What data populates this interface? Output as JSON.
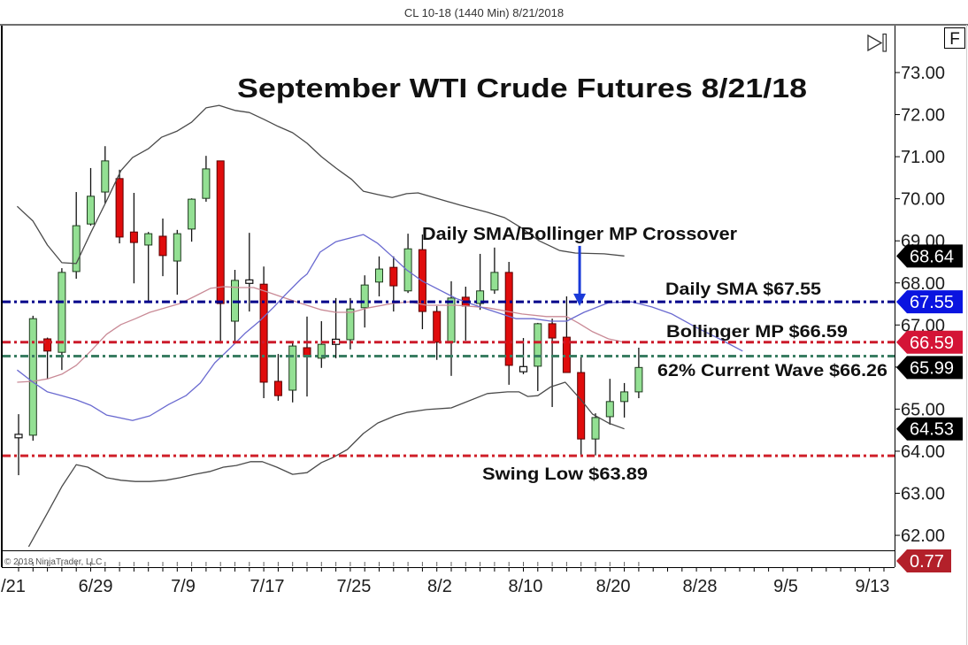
{
  "header": {
    "title": "CL 10-18 (1440 Min)  8/21/2018"
  },
  "toolbar": {
    "scroll_to_end_icon": "scroll-to-end-icon",
    "f_button_label": "F"
  },
  "copyright": "© 2018 NinjaTrader, LLC",
  "annotations": {
    "main_title": "September WTI Crude Futures 8/21/18",
    "crossover": "Daily SMA/Bollinger MP Crossover",
    "daily_sma": "Daily SMA $67.55",
    "bollinger_mp": "Bollinger MP $66.59",
    "fib_62": "62% Current Wave $66.26",
    "swing_low": "Swing Low $63.89"
  },
  "colors": {
    "up_candle": "#93e093",
    "up_outline": "#1e3a1e",
    "down_candle": "#e00c0c",
    "down_outline": "#5a0000",
    "wick": "#111111",
    "arrow": "#1a3ad8",
    "axis": "#000000"
  },
  "chart_data": {
    "type": "candlestick",
    "title": "September WTI Crude Futures 8/21/18",
    "instrument": "CL 10-18",
    "interval": "1440 Min",
    "date": "8/21/2018",
    "xlabel": "",
    "ylabel": "",
    "ylim": [
      61.5,
      74.0
    ],
    "grid": false,
    "y_ticks": [
      73,
      72,
      71,
      70,
      69,
      68,
      67,
      66,
      65,
      64,
      63,
      62
    ],
    "x_ticks": [
      {
        "label": "/21",
        "pos": -0.37
      },
      {
        "label": "6/29",
        "pos": 5.34
      },
      {
        "label": "7/9",
        "pos": 11.41
      },
      {
        "label": "7/17",
        "pos": 17.24
      },
      {
        "label": "7/25",
        "pos": 23.25
      },
      {
        "label": "8/2",
        "pos": 29.2
      },
      {
        "label": "8/10",
        "pos": 35.15
      },
      {
        "label": "8/20",
        "pos": 41.23
      },
      {
        "label": "8/28",
        "pos": 47.24
      },
      {
        "label": "9/5",
        "pos": 53.19
      },
      {
        "label": "9/13",
        "pos": 59.2
      }
    ],
    "candle_fields": [
      "open",
      "high",
      "low",
      "close"
    ],
    "candles": [
      [
        64.35,
        64.88,
        63.43,
        64.37
      ],
      [
        64.38,
        67.22,
        64.25,
        67.15
      ],
      [
        66.67,
        66.7,
        65.72,
        66.38
      ],
      [
        66.35,
        68.35,
        65.93,
        68.25
      ],
      [
        68.27,
        70.16,
        68.1,
        69.36
      ],
      [
        69.4,
        70.73,
        69.36,
        70.06
      ],
      [
        70.16,
        71.25,
        69.89,
        70.9
      ],
      [
        70.48,
        70.69,
        68.94,
        69.09
      ],
      [
        69.21,
        70.14,
        67.99,
        68.96
      ],
      [
        68.9,
        69.21,
        67.53,
        69.17
      ],
      [
        69.11,
        69.53,
        68.16,
        68.65
      ],
      [
        68.52,
        69.26,
        67.72,
        69.17
      ],
      [
        69.28,
        70.01,
        68.98,
        69.99
      ],
      [
        70.01,
        71.02,
        69.93,
        70.71
      ],
      [
        70.9,
        70.9,
        66.56,
        67.51
      ],
      [
        67.09,
        68.31,
        66.59,
        68.06
      ],
      [
        68.02,
        69.19,
        67.32,
        68.04
      ],
      [
        67.97,
        68.39,
        65.26,
        65.64
      ],
      [
        65.66,
        66.31,
        65.2,
        65.32
      ],
      [
        65.45,
        66.59,
        65.16,
        66.5
      ],
      [
        66.46,
        67.2,
        65.3,
        66.25
      ],
      [
        66.21,
        67.09,
        65.98,
        66.54
      ],
      [
        66.57,
        67.64,
        66.21,
        66.63
      ],
      [
        66.65,
        67.64,
        66.42,
        67.38
      ],
      [
        67.41,
        68.18,
        66.94,
        67.95
      ],
      [
        68.02,
        68.63,
        67.68,
        68.33
      ],
      [
        68.37,
        68.63,
        67.32,
        67.93
      ],
      [
        67.81,
        69.17,
        67.76,
        68.81
      ],
      [
        68.79,
        69.15,
        66.9,
        67.32
      ],
      [
        67.32,
        67.45,
        66.17,
        66.59
      ],
      [
        66.59,
        68.04,
        65.79,
        67.64
      ],
      [
        67.66,
        67.91,
        66.63,
        67.45
      ],
      [
        67.51,
        68.69,
        67.36,
        67.81
      ],
      [
        67.83,
        68.84,
        67.74,
        68.25
      ],
      [
        68.25,
        68.5,
        65.58,
        66.04
      ],
      [
        65.92,
        66.69,
        65.83,
        65.98
      ],
      [
        66.02,
        67.05,
        65.43,
        67.03
      ],
      [
        67.03,
        67.15,
        65.05,
        66.69
      ],
      [
        66.71,
        67.68,
        65.87,
        65.87
      ],
      [
        65.87,
        66.23,
        63.89,
        64.29
      ],
      [
        64.29,
        64.9,
        63.9,
        64.8
      ],
      [
        64.82,
        65.72,
        64.63,
        65.18
      ],
      [
        65.18,
        65.62,
        64.8,
        65.41
      ],
      [
        65.41,
        66.46,
        65.26,
        65.99
      ]
    ],
    "series": [
      {
        "name": "Bollinger Upper",
        "color": "#4a4a4a",
        "points": [
          [
            -0.1,
            69.82
          ],
          [
            1.0,
            69.47
          ],
          [
            2.0,
            68.9
          ],
          [
            3.0,
            68.48
          ],
          [
            4.0,
            68.46
          ],
          [
            5.0,
            69.19
          ],
          [
            6.1,
            69.95
          ],
          [
            7.1,
            70.67
          ],
          [
            7.9,
            70.98
          ],
          [
            9.0,
            71.19
          ],
          [
            9.9,
            71.46
          ],
          [
            11.0,
            71.61
          ],
          [
            12.0,
            71.82
          ],
          [
            13.0,
            72.16
          ],
          [
            13.9,
            72.22
          ],
          [
            15.0,
            72.1
          ],
          [
            16.0,
            72.05
          ],
          [
            17.0,
            71.89
          ],
          [
            18.0,
            71.72
          ],
          [
            19.0,
            71.57
          ],
          [
            20.0,
            71.32
          ],
          [
            21.0,
            71.0
          ],
          [
            22.0,
            70.73
          ],
          [
            23.1,
            70.46
          ],
          [
            23.9,
            70.18
          ],
          [
            24.9,
            70.1
          ],
          [
            25.9,
            70.03
          ],
          [
            26.9,
            70.12
          ],
          [
            27.7,
            70.14
          ],
          [
            28.8,
            70.03
          ],
          [
            30.6,
            69.85
          ],
          [
            32.5,
            69.68
          ],
          [
            33.7,
            69.55
          ],
          [
            34.9,
            69.3
          ],
          [
            36.1,
            69.0
          ],
          [
            37.5,
            68.77
          ],
          [
            38.6,
            68.71
          ],
          [
            40.6,
            68.69
          ],
          [
            42.0,
            68.64
          ]
        ]
      },
      {
        "name": "Bollinger Lower",
        "color": "#4a4a4a",
        "points": [
          [
            0.7,
            61.73
          ],
          [
            2.0,
            62.53
          ],
          [
            3.0,
            63.16
          ],
          [
            4.0,
            63.68
          ],
          [
            4.8,
            63.62
          ],
          [
            6.1,
            63.37
          ],
          [
            7.1,
            63.31
          ],
          [
            8.1,
            63.28
          ],
          [
            9.1,
            63.28
          ],
          [
            10.2,
            63.31
          ],
          [
            11.2,
            63.37
          ],
          [
            12.2,
            63.45
          ],
          [
            13.3,
            63.52
          ],
          [
            14.2,
            63.62
          ],
          [
            15.1,
            63.66
          ],
          [
            16.1,
            63.75
          ],
          [
            16.9,
            63.75
          ],
          [
            17.9,
            63.62
          ],
          [
            19.0,
            63.45
          ],
          [
            20.0,
            63.49
          ],
          [
            21.0,
            63.73
          ],
          [
            21.8,
            63.85
          ],
          [
            22.8,
            64.04
          ],
          [
            23.9,
            64.42
          ],
          [
            24.9,
            64.67
          ],
          [
            26.1,
            64.84
          ],
          [
            26.9,
            64.92
          ],
          [
            28.3,
            64.99
          ],
          [
            30.0,
            65.03
          ],
          [
            32.5,
            65.37
          ],
          [
            33.9,
            65.41
          ],
          [
            34.7,
            65.41
          ],
          [
            35.3,
            65.3
          ],
          [
            36.0,
            65.32
          ],
          [
            36.9,
            65.53
          ],
          [
            37.9,
            65.64
          ],
          [
            39.0,
            65.22
          ],
          [
            39.8,
            64.88
          ],
          [
            40.9,
            64.67
          ],
          [
            42.0,
            64.53
          ]
        ]
      },
      {
        "name": "Bollinger MP",
        "color": "#c98a96",
        "points": [
          [
            -0.1,
            65.64
          ],
          [
            1.0,
            65.66
          ],
          [
            2.0,
            65.72
          ],
          [
            3.0,
            65.83
          ],
          [
            4.0,
            66.04
          ],
          [
            5.0,
            66.38
          ],
          [
            6.1,
            66.78
          ],
          [
            7.1,
            67.01
          ],
          [
            8.1,
            67.15
          ],
          [
            9.1,
            67.3
          ],
          [
            10.2,
            67.41
          ],
          [
            11.2,
            67.51
          ],
          [
            12.2,
            67.68
          ],
          [
            13.3,
            67.87
          ],
          [
            14.2,
            67.91
          ],
          [
            15.3,
            67.89
          ],
          [
            16.3,
            67.89
          ],
          [
            17.3,
            67.78
          ],
          [
            18.3,
            67.66
          ],
          [
            19.6,
            67.51
          ],
          [
            21.0,
            67.36
          ],
          [
            22.0,
            67.3
          ],
          [
            23.1,
            67.3
          ],
          [
            24.3,
            67.41
          ],
          [
            25.9,
            67.51
          ],
          [
            27.1,
            67.55
          ],
          [
            28.3,
            67.47
          ],
          [
            30.4,
            67.47
          ],
          [
            32.5,
            67.41
          ],
          [
            34.9,
            67.26
          ],
          [
            36.6,
            67.2
          ],
          [
            38.0,
            67.2
          ],
          [
            38.8,
            67.05
          ],
          [
            39.8,
            66.84
          ],
          [
            40.9,
            66.67
          ],
          [
            42.0,
            66.59
          ]
        ]
      },
      {
        "name": "Daily SMA",
        "color": "#6a6ad0",
        "points": [
          [
            -0.1,
            65.93
          ],
          [
            1.0,
            65.64
          ],
          [
            2.0,
            65.41
          ],
          [
            3.0,
            65.32
          ],
          [
            4.0,
            65.22
          ],
          [
            5.0,
            65.09
          ],
          [
            6.1,
            64.86
          ],
          [
            7.9,
            64.73
          ],
          [
            9.1,
            64.84
          ],
          [
            10.4,
            65.11
          ],
          [
            11.6,
            65.32
          ],
          [
            12.6,
            65.62
          ],
          [
            13.6,
            66.1
          ],
          [
            14.7,
            66.46
          ],
          [
            15.7,
            66.8
          ],
          [
            16.7,
            67.09
          ],
          [
            17.7,
            67.43
          ],
          [
            18.5,
            67.72
          ],
          [
            19.6,
            68.1
          ],
          [
            20.0,
            68.21
          ],
          [
            20.9,
            68.73
          ],
          [
            22.0,
            68.98
          ],
          [
            23.9,
            69.15
          ],
          [
            24.9,
            68.94
          ],
          [
            25.9,
            68.63
          ],
          [
            26.9,
            68.31
          ],
          [
            28.0,
            68.04
          ],
          [
            30.4,
            67.62
          ],
          [
            32.0,
            67.43
          ],
          [
            34.5,
            67.15
          ],
          [
            35.7,
            67.15
          ],
          [
            36.9,
            67.09
          ],
          [
            38.0,
            67.09
          ],
          [
            39.2,
            67.3
          ],
          [
            40.9,
            67.53
          ],
          [
            42.5,
            67.55
          ],
          [
            43.9,
            67.43
          ],
          [
            45.3,
            67.26
          ],
          [
            47.0,
            66.94
          ],
          [
            48.6,
            66.67
          ],
          [
            50.2,
            66.38
          ]
        ]
      }
    ],
    "levels": [
      {
        "name": "Daily SMA",
        "value": 67.55,
        "color": "#00008b"
      },
      {
        "name": "Bollinger MP",
        "value": 66.59,
        "color": "#cc1a2a"
      },
      {
        "name": "62% Current Wave",
        "value": 66.26,
        "color": "#3a7d62"
      },
      {
        "name": "Swing Low",
        "value": 63.89,
        "color": "#d0202a"
      }
    ],
    "price_markers": [
      {
        "label": "68.64",
        "value": 68.64,
        "color": "#000000"
      },
      {
        "label": "67.55",
        "value": 67.55,
        "color": "#0a14e0"
      },
      {
        "label": "66.59",
        "value": 66.59,
        "color": "#d41436"
      },
      {
        "label": "65.99",
        "value": 65.99,
        "color": "#000000"
      },
      {
        "label": "64.53",
        "value": 64.53,
        "color": "#000000"
      }
    ],
    "indicator_panel": {
      "label": "0.77",
      "value": 0.77,
      "color": "#b3202a"
    },
    "arrow": {
      "bar": 38.9,
      "from": 68.88,
      "to": 67.45
    }
  }
}
